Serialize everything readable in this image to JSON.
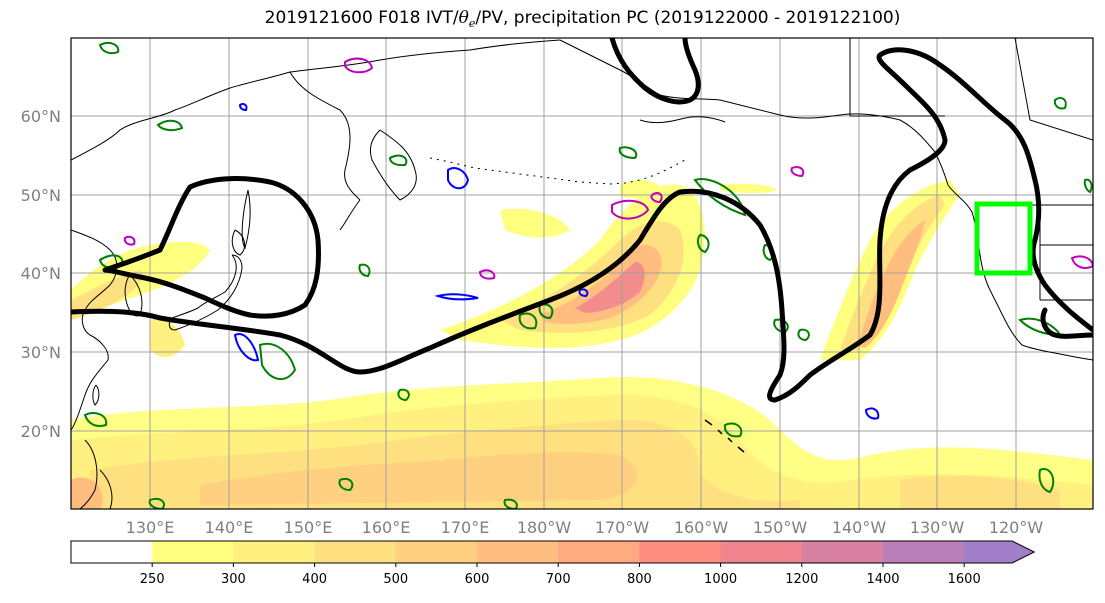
{
  "title": {
    "prefix": "2019121600 F018 IVT/",
    "theta": "θ",
    "theta_sub": "e",
    "suffix": "/PV, precipitation PC (2019122000 - 2019122100)"
  },
  "map": {
    "lat_labels": [
      "60°N",
      "50°N",
      "40°N",
      "30°N",
      "20°N"
    ],
    "lon_labels": [
      "130°E",
      "140°E",
      "150°E",
      "160°E",
      "170°E",
      "180°W",
      "170°W",
      "160°W",
      "150°W",
      "140°W",
      "130°W",
      "120°W"
    ],
    "colors": {
      "coast": "#000000",
      "grid": "#a0a0a0",
      "contour_thick": "#000000",
      "green_contour": "#008000",
      "magenta_contour": "#bf00bf",
      "blue_contour": "#0000ff",
      "highlight_box": "#00ff00"
    }
  },
  "colorbar": {
    "ticks": [
      "250",
      "300",
      "400",
      "500",
      "600",
      "700",
      "800",
      "1000",
      "1200",
      "1400",
      "1600"
    ],
    "colors": [
      "#ffffff",
      "#ffff7f",
      "#fff07f",
      "#ffe080",
      "#ffd080",
      "#ffbd80",
      "#ffaa80",
      "#ff8c80",
      "#f0848f",
      "#d880a0",
      "#b87fb8",
      "#a07fc8"
    ]
  }
}
